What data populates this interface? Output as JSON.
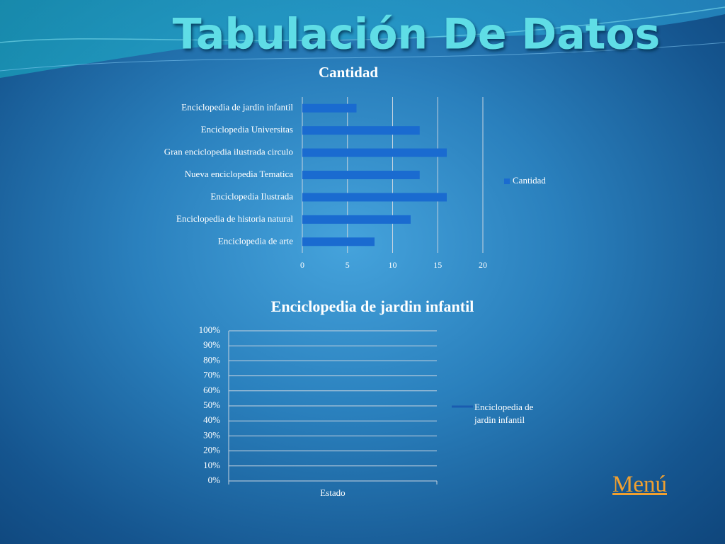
{
  "title": "Tabulación De Datos",
  "link": "Menú",
  "chart_data": [
    {
      "type": "barh",
      "title": "Cantidad",
      "categories": [
        "Enciclopedia de jardin infantil",
        "Enciclopedia Universitas",
        "Gran enciclopedia ilustrada circulo",
        "Nueva enciclopedia Tematica",
        "Enciclopedia Ilustrada",
        "Enciclopedia de historia natural",
        "Enciclopedia de arte"
      ],
      "series": [
        {
          "name": "Cantidad",
          "color": "#1a6bd0",
          "values": [
            6,
            13,
            16,
            13,
            16,
            12,
            8
          ]
        }
      ],
      "xlim": [
        0,
        20
      ],
      "xticks": [
        0,
        5,
        10,
        15,
        20
      ],
      "grid": true,
      "legend": "right"
    },
    {
      "type": "line",
      "title": "Enciclopedia de jardin infantil",
      "categories": [
        "Estado"
      ],
      "series": [
        {
          "name": "Enciclopedia de jardin infantil",
          "color": "#1a5cb0",
          "values": [
            null
          ]
        }
      ],
      "ylim": [
        0,
        100
      ],
      "yticks": [
        {
          "value": 0,
          "label": "0%"
        },
        {
          "value": 10,
          "label": "10%"
        },
        {
          "value": 20,
          "label": "20%"
        },
        {
          "value": 30,
          "label": "30%"
        },
        {
          "value": 40,
          "label": "40%"
        },
        {
          "value": 50,
          "label": "50%"
        },
        {
          "value": 60,
          "label": "60%"
        },
        {
          "value": 70,
          "label": "70%"
        },
        {
          "value": 80,
          "label": "80%"
        },
        {
          "value": 90,
          "label": "90%"
        },
        {
          "value": 100,
          "label": "100%"
        }
      ],
      "grid": true,
      "legend": "right"
    }
  ]
}
